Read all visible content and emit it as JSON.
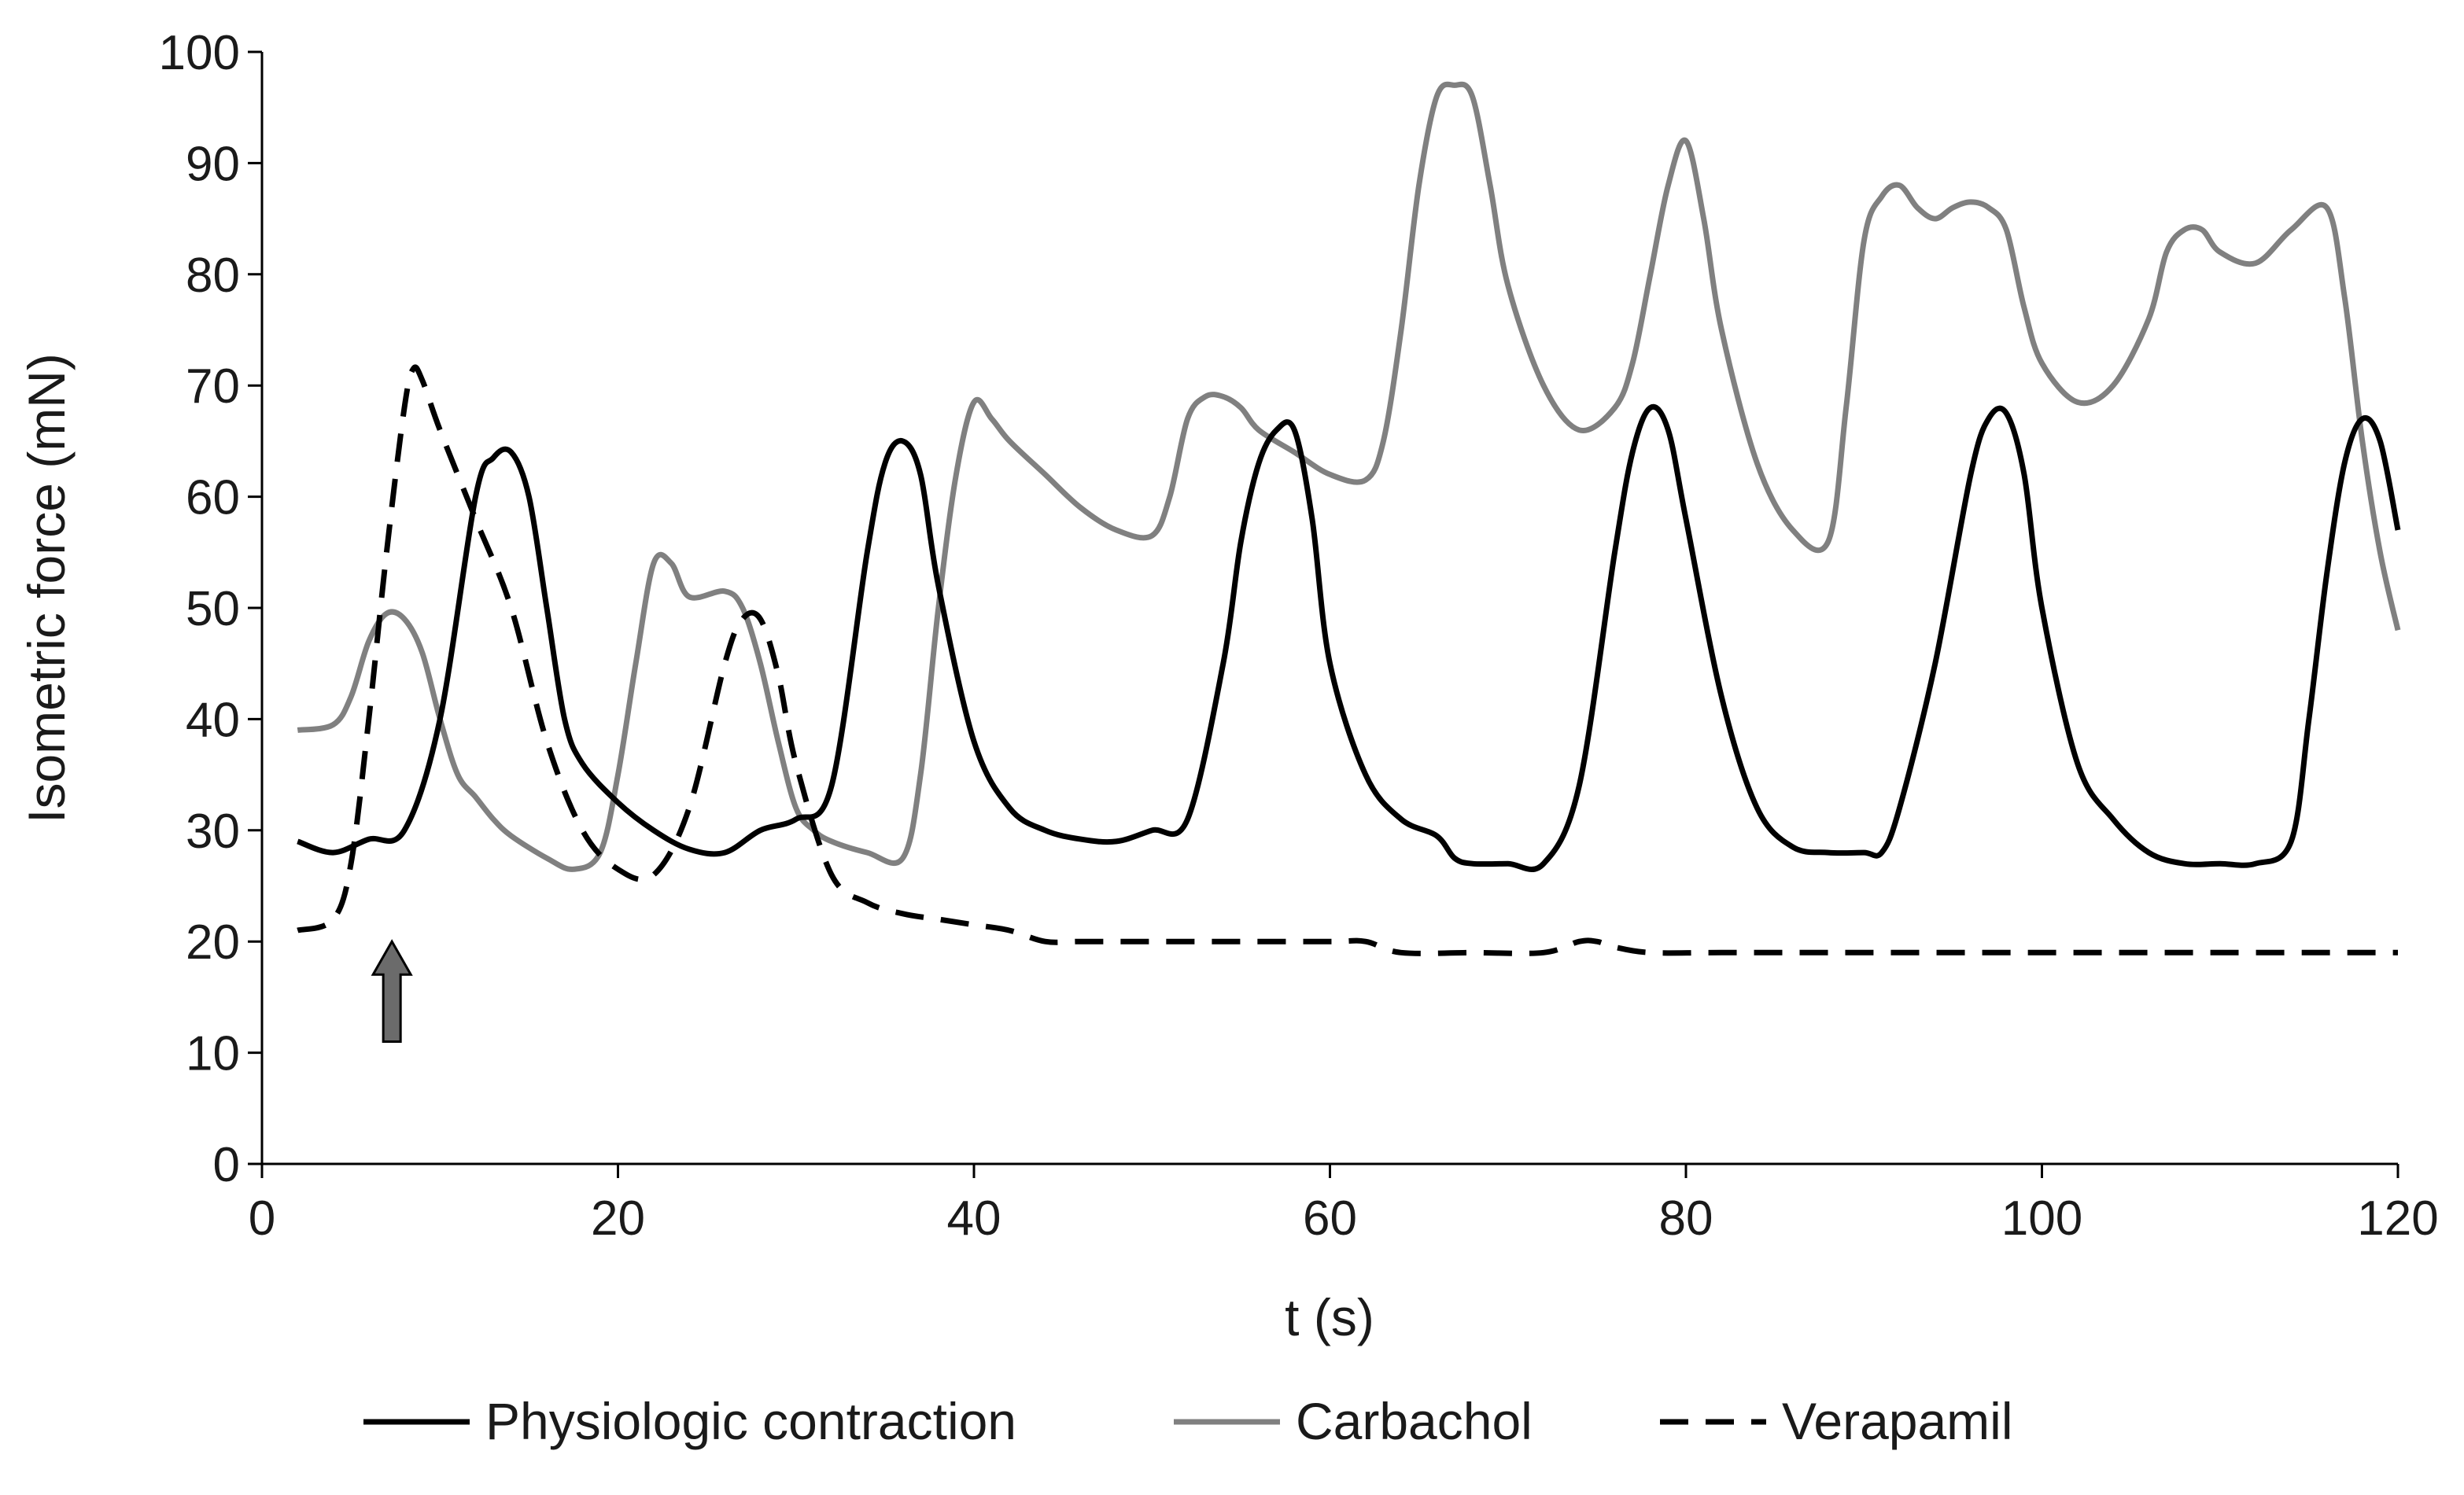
{
  "chart_data": {
    "type": "line",
    "title": "",
    "xlabel": "t (s)",
    "ylabel": "Isometric force (mN)",
    "xlim": [
      0,
      120
    ],
    "ylim": [
      0,
      100
    ],
    "x_ticks": [
      0,
      20,
      40,
      60,
      80,
      100,
      120
    ],
    "y_ticks": [
      0,
      10,
      20,
      30,
      40,
      50,
      60,
      70,
      80,
      90,
      100
    ],
    "grid": false,
    "legend_position": "bottom",
    "annotations": [
      {
        "type": "arrow",
        "label": "",
        "x": 7.3,
        "y_from": 11,
        "y_to": 20,
        "color": "#6b6b6b"
      }
    ],
    "series": [
      {
        "name": "Physiologic contraction",
        "color": "#000000",
        "dash": "solid",
        "points": [
          [
            2,
            29
          ],
          [
            4,
            28
          ],
          [
            6,
            29.2
          ],
          [
            8,
            30
          ],
          [
            10,
            40
          ],
          [
            12,
            60
          ],
          [
            13,
            63.5
          ],
          [
            14,
            64
          ],
          [
            15,
            60
          ],
          [
            16,
            50
          ],
          [
            17,
            40
          ],
          [
            18,
            36
          ],
          [
            20,
            32.5
          ],
          [
            22,
            30
          ],
          [
            24,
            28.3
          ],
          [
            26,
            28
          ],
          [
            28,
            30
          ],
          [
            30,
            31
          ],
          [
            32,
            34
          ],
          [
            34,
            55
          ],
          [
            35,
            63
          ],
          [
            36,
            65
          ],
          [
            37,
            62
          ],
          [
            38,
            52
          ],
          [
            40,
            38
          ],
          [
            42,
            32
          ],
          [
            44,
            30
          ],
          [
            46,
            29.2
          ],
          [
            48,
            29
          ],
          [
            50,
            30
          ],
          [
            52,
            31
          ],
          [
            54,
            45
          ],
          [
            55,
            56
          ],
          [
            56,
            63
          ],
          [
            57,
            66
          ],
          [
            58,
            66
          ],
          [
            59,
            58
          ],
          [
            60,
            45
          ],
          [
            62,
            35
          ],
          [
            64,
            31
          ],
          [
            66,
            29.5
          ],
          [
            67,
            27.5
          ],
          [
            68,
            27
          ],
          [
            70,
            27
          ],
          [
            72,
            27
          ],
          [
            74,
            34
          ],
          [
            76,
            55
          ],
          [
            77,
            64
          ],
          [
            78,
            68
          ],
          [
            79,
            66
          ],
          [
            80,
            58
          ],
          [
            82,
            42
          ],
          [
            84,
            32
          ],
          [
            86,
            28.5
          ],
          [
            88,
            28
          ],
          [
            90,
            28
          ],
          [
            91,
            28
          ],
          [
            92,
            32
          ],
          [
            94,
            45
          ],
          [
            96,
            62
          ],
          [
            97,
            67
          ],
          [
            98,
            67.5
          ],
          [
            99,
            62
          ],
          [
            100,
            50
          ],
          [
            102,
            36
          ],
          [
            104,
            31
          ],
          [
            106,
            28
          ],
          [
            108,
            27
          ],
          [
            110,
            27
          ],
          [
            112,
            27
          ],
          [
            114,
            29
          ],
          [
            115,
            40
          ],
          [
            116,
            53
          ],
          [
            117,
            63
          ],
          [
            118,
            67
          ],
          [
            119,
            65
          ],
          [
            120,
            57
          ]
        ]
      },
      {
        "name": "Carbachol",
        "color": "#808080",
        "dash": "solid",
        "points": [
          [
            2,
            39
          ],
          [
            4,
            39.5
          ],
          [
            5,
            42
          ],
          [
            6,
            47
          ],
          [
            7,
            49.5
          ],
          [
            8,
            49
          ],
          [
            9,
            46
          ],
          [
            10,
            40
          ],
          [
            11,
            35
          ],
          [
            12,
            33
          ],
          [
            13,
            31
          ],
          [
            14,
            29.5
          ],
          [
            16,
            27.5
          ],
          [
            17.5,
            26.5
          ],
          [
            19,
            28
          ],
          [
            20,
            35
          ],
          [
            21,
            45
          ],
          [
            22,
            54
          ],
          [
            23,
            54
          ],
          [
            24,
            51
          ],
          [
            26,
            51.5
          ],
          [
            27,
            50
          ],
          [
            28,
            45
          ],
          [
            29,
            38
          ],
          [
            30,
            32
          ],
          [
            31,
            30
          ],
          [
            32,
            29
          ],
          [
            34,
            28
          ],
          [
            36,
            27.5
          ],
          [
            37,
            35
          ],
          [
            38,
            50
          ],
          [
            39,
            62
          ],
          [
            40,
            68.5
          ],
          [
            41,
            67
          ],
          [
            42,
            65
          ],
          [
            44,
            62
          ],
          [
            46,
            59
          ],
          [
            48,
            57
          ],
          [
            50,
            56.5
          ],
          [
            51,
            60
          ],
          [
            52,
            67
          ],
          [
            53,
            69
          ],
          [
            54,
            69
          ],
          [
            55,
            68
          ],
          [
            56,
            66
          ],
          [
            58,
            64
          ],
          [
            60,
            62
          ],
          [
            62,
            61.5
          ],
          [
            63,
            65
          ],
          [
            64,
            75
          ],
          [
            65,
            88
          ],
          [
            66,
            96
          ],
          [
            67,
            97
          ],
          [
            68,
            96
          ],
          [
            69,
            88
          ],
          [
            70,
            79
          ],
          [
            72,
            70
          ],
          [
            74,
            66
          ],
          [
            76,
            68
          ],
          [
            77,
            72
          ],
          [
            78,
            80
          ],
          [
            79,
            88
          ],
          [
            80,
            92
          ],
          [
            81,
            85
          ],
          [
            82,
            75
          ],
          [
            84,
            63
          ],
          [
            86,
            57
          ],
          [
            88,
            56
          ],
          [
            89,
            68
          ],
          [
            90,
            83
          ],
          [
            91,
            87
          ],
          [
            92,
            88
          ],
          [
            93,
            86
          ],
          [
            94,
            85
          ],
          [
            95,
            86
          ],
          [
            96,
            86.5
          ],
          [
            97,
            86
          ],
          [
            98,
            84
          ],
          [
            99,
            77
          ],
          [
            100,
            72
          ],
          [
            102,
            68.5
          ],
          [
            104,
            70
          ],
          [
            106,
            76
          ],
          [
            107,
            82
          ],
          [
            108,
            84
          ],
          [
            109,
            84
          ],
          [
            110,
            82
          ],
          [
            112,
            81
          ],
          [
            114,
            84
          ],
          [
            116,
            86
          ],
          [
            117,
            78
          ],
          [
            118,
            65
          ],
          [
            119,
            55
          ],
          [
            120,
            48
          ]
        ]
      },
      {
        "name": "Verapamil",
        "color": "#000000",
        "dash": "dashed",
        "points": [
          [
            2,
            21
          ],
          [
            4,
            22
          ],
          [
            5,
            27
          ],
          [
            6,
            40
          ],
          [
            7,
            55
          ],
          [
            8,
            68
          ],
          [
            8.5,
            71.5
          ],
          [
            9,
            70.5
          ],
          [
            10,
            66
          ],
          [
            12,
            58
          ],
          [
            14,
            50
          ],
          [
            16,
            38
          ],
          [
            18,
            30
          ],
          [
            20,
            26.5
          ],
          [
            22,
            26
          ],
          [
            24,
            32
          ],
          [
            26,
            45
          ],
          [
            27,
            49
          ],
          [
            28,
            49
          ],
          [
            29,
            44
          ],
          [
            30,
            36
          ],
          [
            32,
            26
          ],
          [
            34,
            23.5
          ],
          [
            36,
            22.5
          ],
          [
            38,
            22
          ],
          [
            40,
            21.5
          ],
          [
            42,
            21
          ],
          [
            44,
            20
          ],
          [
            46,
            20
          ],
          [
            50,
            20
          ],
          [
            55,
            20
          ],
          [
            60,
            20
          ],
          [
            62,
            20
          ],
          [
            64,
            19
          ],
          [
            68,
            19
          ],
          [
            72,
            19
          ],
          [
            74,
            20
          ],
          [
            75,
            20
          ],
          [
            76,
            19.5
          ],
          [
            78,
            19
          ],
          [
            82,
            19
          ],
          [
            90,
            19
          ],
          [
            100,
            19
          ],
          [
            110,
            19
          ],
          [
            120,
            19
          ]
        ]
      }
    ]
  }
}
